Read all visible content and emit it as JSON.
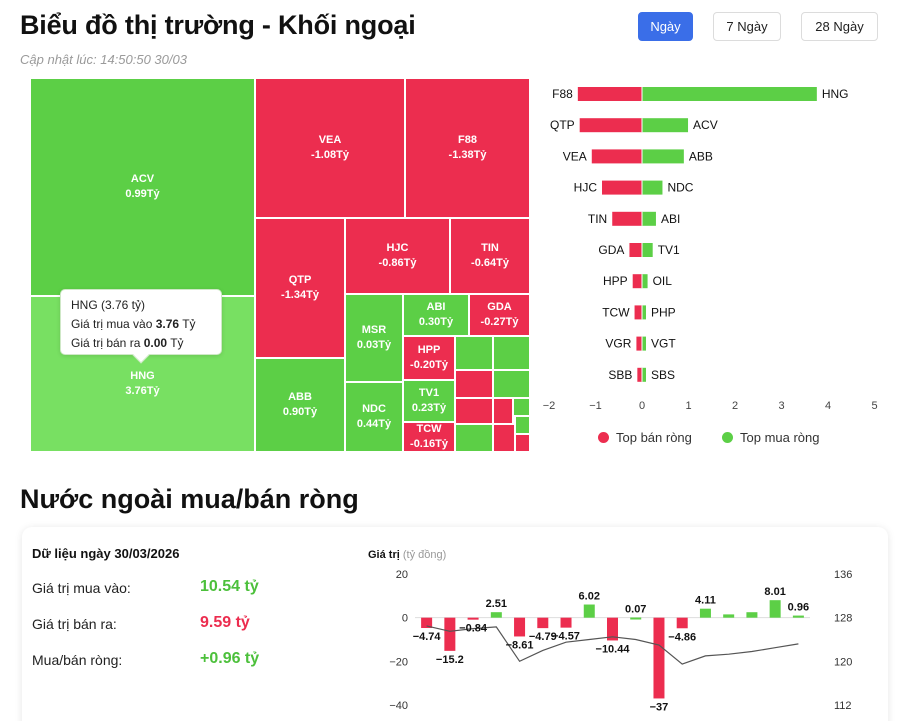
{
  "header": {
    "title": "Biểu đồ thị trường - Khối ngoại",
    "updated": "Cập nhật lúc: 14:50:50 30/03"
  },
  "range_buttons": [
    "Ngày",
    "7 Ngày",
    "28 Ngày"
  ],
  "treemap": {
    "tiles": [
      {
        "code": "ACV",
        "value": "0.99Tỷ",
        "color": "green"
      },
      {
        "code": "HNG",
        "value": "3.76Tỷ",
        "color": "green-hover"
      },
      {
        "code": "VEA",
        "value": "-1.08Tỷ",
        "color": "red"
      },
      {
        "code": "F88",
        "value": "-1.38Tỷ",
        "color": "red"
      },
      {
        "code": "QTP",
        "value": "-1.34Tỷ",
        "color": "red"
      },
      {
        "code": "HJC",
        "value": "-0.86Tỷ",
        "color": "red"
      },
      {
        "code": "TIN",
        "value": "-0.64Tỷ",
        "color": "red"
      },
      {
        "code": "ABB",
        "value": "0.90Tỷ",
        "color": "green"
      },
      {
        "code": "MSR",
        "value": "0.03Tỷ",
        "color": "green"
      },
      {
        "code": "ABI",
        "value": "0.30Tỷ",
        "color": "green"
      },
      {
        "code": "GDA",
        "value": "-0.27Tỷ",
        "color": "red"
      },
      {
        "code": "HPP",
        "value": "-0.20Tỷ",
        "color": "red"
      },
      {
        "code": "NDC",
        "value": "0.44Tỷ",
        "color": "green"
      },
      {
        "code": "TV1",
        "value": "0.23Tỷ",
        "color": "green"
      },
      {
        "code": "TCW",
        "value": "-0.16Tỷ",
        "color": "red"
      }
    ],
    "tooltip": {
      "title": "HNG (3.76 tỷ)",
      "buy_label": "Giá trị mua vào",
      "buy_value": "3.76",
      "buy_unit": "Tỷ",
      "sell_label": "Giá trị bán ra",
      "sell_value": "0.00",
      "sell_unit": "Tỷ"
    }
  },
  "colors": {
    "green": "#5ccf46",
    "green_hover": "#78e062",
    "red": "#ec2d4f",
    "accent": "#3a6ee8",
    "line": "#555555"
  },
  "legend": {
    "sell": "Top bán ròng",
    "buy": "Top mua ròng"
  },
  "chart_data": [
    {
      "type": "bar",
      "orientation": "horizontal",
      "x_ticks": [
        "−2",
        "−1",
        "0",
        "1",
        "2",
        "3",
        "4",
        "5"
      ],
      "xlim": [
        -2,
        5
      ],
      "grid": false,
      "legend_placement": "bottom",
      "rows": [
        {
          "sell_code": "F88",
          "sell": -1.38,
          "buy_code": "HNG",
          "buy": 3.76
        },
        {
          "sell_code": "QTP",
          "sell": -1.34,
          "buy_code": "ACV",
          "buy": 0.99
        },
        {
          "sell_code": "VEA",
          "sell": -1.08,
          "buy_code": "ABB",
          "buy": 0.9
        },
        {
          "sell_code": "HJC",
          "sell": -0.86,
          "buy_code": "NDC",
          "buy": 0.44
        },
        {
          "sell_code": "TIN",
          "sell": -0.64,
          "buy_code": "ABI",
          "buy": 0.3
        },
        {
          "sell_code": "GDA",
          "sell": -0.27,
          "buy_code": "TV1",
          "buy": 0.23
        },
        {
          "sell_code": "HPP",
          "sell": -0.2,
          "buy_code": "OIL",
          "buy": 0.12
        },
        {
          "sell_code": "TCW",
          "sell": -0.16,
          "buy_code": "PHP",
          "buy": 0.08
        },
        {
          "sell_code": "VGR",
          "sell": -0.12,
          "buy_code": "VGT",
          "buy": 0.05
        },
        {
          "sell_code": "SBB",
          "sell": -0.1,
          "buy_code": "SBS",
          "buy": 0.03
        }
      ]
    },
    {
      "type": "bar",
      "title": "Giá trị",
      "title_unit": "(tỷ đồng)",
      "ylim": [
        -40,
        20
      ],
      "y_ticks": [
        "20",
        "0",
        "−20",
        "−40"
      ],
      "y2lim": [
        112,
        136
      ],
      "y2_ticks": [
        "136",
        "128",
        "120",
        "112"
      ],
      "values": [
        -4.74,
        -15.2,
        -0.84,
        2.51,
        -8.61,
        -4.79,
        -4.57,
        6.02,
        -10.44,
        0.07,
        -37,
        -4.86,
        4.11,
        1.5,
        2.5,
        8.01,
        0.96
      ],
      "labels": [
        "−4.74",
        "−15.2",
        "−0.84",
        "2.51",
        "−8.61",
        "−4.79",
        "−4.57",
        "6.02",
        "−10.44",
        "0.07",
        "−37",
        "−4.86",
        "4.11",
        "",
        "",
        "8.01",
        "0.96"
      ],
      "line_series": [
        126.5,
        125.5,
        126,
        126.3,
        120,
        122,
        123.5,
        124,
        124.5,
        124,
        123,
        119.5,
        121,
        121.3,
        121.8,
        122.5,
        123.2
      ]
    }
  ],
  "summary": {
    "date_label": "Dữ liệu ngày 30/03/2026",
    "rows": [
      {
        "label": "Giá trị mua vào:",
        "value": "10.54 tỷ",
        "color": "#4cc03b"
      },
      {
        "label": "Giá trị bán ra:",
        "value": "9.59 tỷ",
        "color": "#ec2d4f"
      },
      {
        "label": "Mua/bán ròng:",
        "value": "+0.96 tỷ",
        "color": "#4cc03b"
      }
    ]
  },
  "section_title": "Nước ngoài mua/bán ròng"
}
